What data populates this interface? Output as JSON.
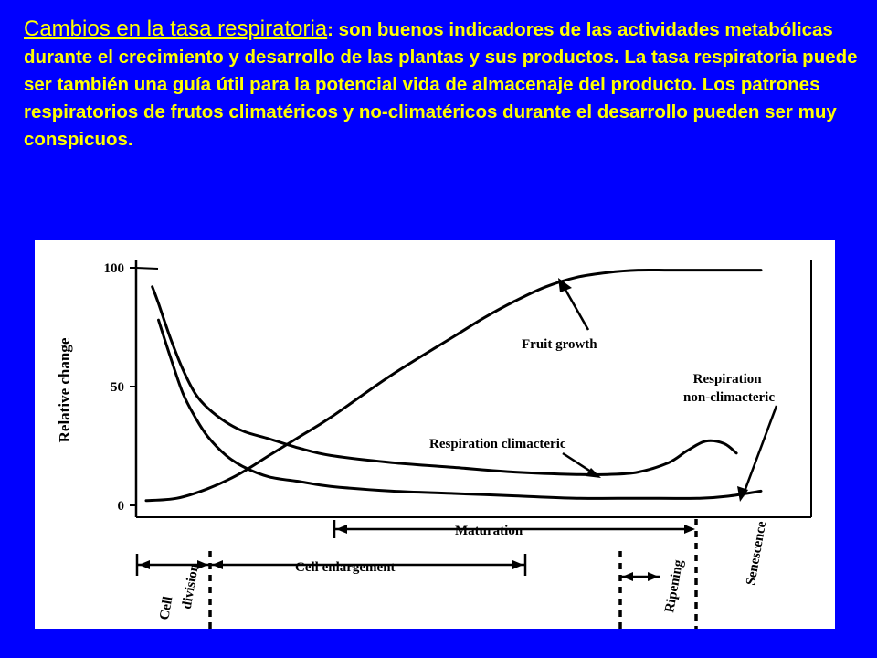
{
  "slide": {
    "heading": "Cambios en la tasa respiratoria",
    "body": ": son buenos indicadores de las actividades metabólicas durante el crecimiento y desarrollo de las plantas y sus productos. La tasa respiratoria puede ser también una guía útil para la potencial vida de almacenaje del producto. Los patrones respiratorios de frutos  climatéricos y  no-climatéricos durante el desarrollo pueden ser muy conspicuos."
  },
  "colors": {
    "background": "#0000ff",
    "text": "#ffff00",
    "figure_bg": "#ffffff",
    "ink": "#000000"
  },
  "chart_data": {
    "type": "line",
    "ylabel": "Relative change",
    "yticks": [
      0,
      50,
      100
    ],
    "ylim": [
      0,
      100
    ],
    "xlim": [
      0,
      100
    ],
    "series": [
      {
        "name": "Fruit growth",
        "x": [
          0,
          5,
          10,
          15,
          20,
          25,
          30,
          40,
          50,
          55,
          60,
          65,
          70,
          75,
          80,
          85,
          90,
          100
        ],
        "y": [
          2,
          3,
          7,
          13,
          21,
          29,
          37,
          55,
          71,
          79,
          86,
          92,
          96,
          98,
          99,
          99,
          99,
          99
        ]
      },
      {
        "name": "Respiration climacteric",
        "x": [
          1,
          2,
          4,
          6,
          8,
          10,
          13,
          16,
          20,
          25,
          30,
          40,
          50,
          60,
          70,
          75,
          80,
          85,
          88,
          91,
          94,
          96
        ],
        "y": [
          92,
          85,
          70,
          57,
          47,
          41,
          35,
          31,
          28,
          24,
          21,
          18,
          16,
          14,
          13,
          13,
          14,
          18,
          23,
          27,
          26,
          22
        ]
      },
      {
        "name": "Respiration non-climacteric",
        "x": [
          2,
          4,
          6,
          8,
          10,
          13,
          16,
          20,
          25,
          30,
          40,
          50,
          60,
          70,
          80,
          90,
          95,
          100
        ],
        "y": [
          78,
          62,
          47,
          37,
          29,
          21,
          16,
          12,
          10,
          8,
          6,
          5,
          4,
          3,
          3,
          3,
          4,
          6
        ]
      }
    ],
    "annotations": [
      "Fruit growth",
      "Respiration climacteric",
      "Respiration non-climacteric"
    ],
    "stages": [
      {
        "label": "Cell division"
      },
      {
        "label": "Cell enlargement"
      },
      {
        "label": "Maturation"
      },
      {
        "label": "Ripening"
      },
      {
        "label": "Senescence"
      }
    ]
  }
}
